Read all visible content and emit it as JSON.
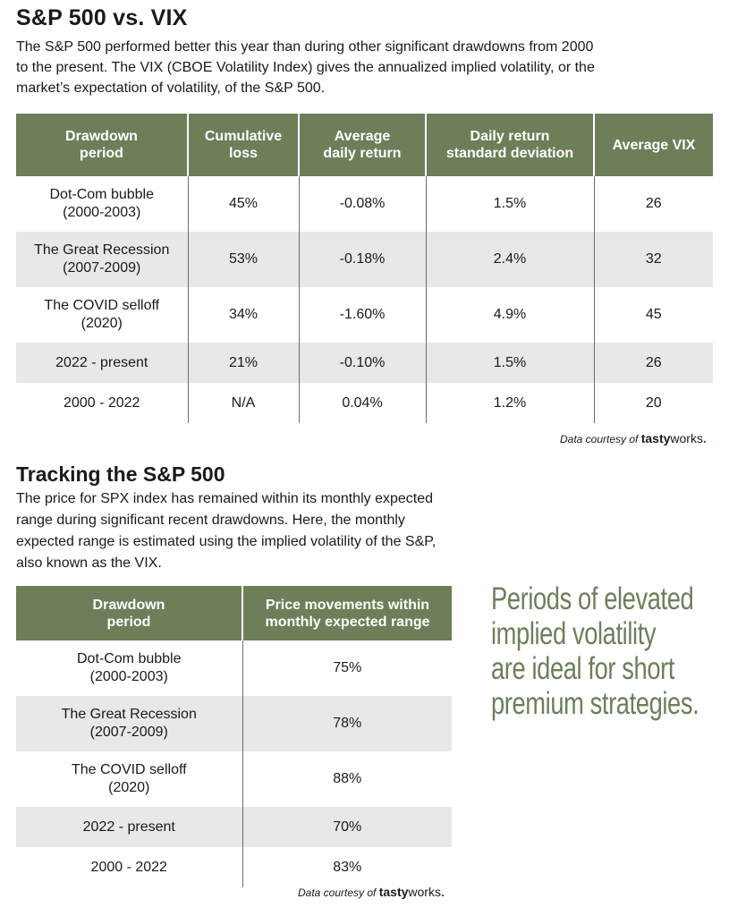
{
  "section1": {
    "title": "S&P 500 vs. VIX",
    "intro": "The S&P 500 performed better this year than during other significant drawdowns from 2000 to the present. The VIX (CBOE Volatility Index) gives the annualized implied volatility, or the market’s expectation of volatility, of the S&P 500.",
    "table": {
      "headers": [
        "Drawdown period",
        "Cumulative loss",
        "Average daily return",
        "Daily return standard deviation",
        "Average VIX"
      ],
      "header_lines": [
        [
          "Drawdown",
          "period"
        ],
        [
          "Cumulative",
          "loss"
        ],
        [
          "Average",
          "daily return"
        ],
        [
          "Daily return",
          "standard deviation"
        ],
        [
          "Average VIX",
          ""
        ]
      ],
      "rows": [
        {
          "period_line1": "Dot-Com bubble",
          "period_line2": "(2000-2003)",
          "loss": "45%",
          "avg_return": "-0.08%",
          "std_dev": "1.5%",
          "avg_vix": "26"
        },
        {
          "period_line1": "The Great Recession",
          "period_line2": "(2007-2009)",
          "loss": "53%",
          "avg_return": "-0.18%",
          "std_dev": "2.4%",
          "avg_vix": "32"
        },
        {
          "period_line1": "The COVID selloff",
          "period_line2": "(2020)",
          "loss": "34%",
          "avg_return": "-1.60%",
          "std_dev": "4.9%",
          "avg_vix": "45"
        },
        {
          "period_line1": "2022 - present",
          "period_line2": "",
          "loss": "21%",
          "avg_return": "-0.10%",
          "std_dev": "1.5%",
          "avg_vix": "26"
        },
        {
          "period_line1": "2000 - 2022",
          "period_line2": "",
          "loss": "N/A",
          "avg_return": "0.04%",
          "std_dev": "1.2%",
          "avg_vix": "20"
        }
      ]
    },
    "credit_prefix": "Data courtesy of",
    "credit_brand_bold": "tasty",
    "credit_brand_light": "works",
    "credit_dot": "."
  },
  "section2": {
    "title": "Tracking the S&P 500",
    "intro": "The price for SPX index has remained within its monthly expected range during significant recent drawdowns. Here, the monthly expected range is estimated using the implied volatility of the S&P, also known as the VIX.",
    "table": {
      "header_lines": [
        [
          "Drawdown",
          "period"
        ],
        [
          "Price movements within",
          "monthly expected range"
        ]
      ],
      "rows": [
        {
          "period_line1": "Dot-Com bubble",
          "period_line2": "(2000-2003)",
          "pct": "75%"
        },
        {
          "period_line1": "The Great Recession",
          "period_line2": "(2007-2009)",
          "pct": "78%"
        },
        {
          "period_line1": "The COVID selloff",
          "period_line2": "(2020)",
          "pct": "88%"
        },
        {
          "period_line1": "2022 - present",
          "period_line2": "",
          "pct": "70%"
        },
        {
          "period_line1": "2000 - 2022",
          "period_line2": "",
          "pct": "83%"
        }
      ]
    },
    "credit_prefix": "Data courtesy of",
    "credit_brand_bold": "tasty",
    "credit_brand_light": "works",
    "credit_dot": "."
  },
  "callout": {
    "lines": [
      "Periods of elevated",
      "implied volatility",
      "are ideal for short",
      "premium strategies."
    ]
  },
  "colors": {
    "header_green": "#6c7f59",
    "row_shade": "#e7e8e7",
    "brand_dot": "#d11f26"
  }
}
